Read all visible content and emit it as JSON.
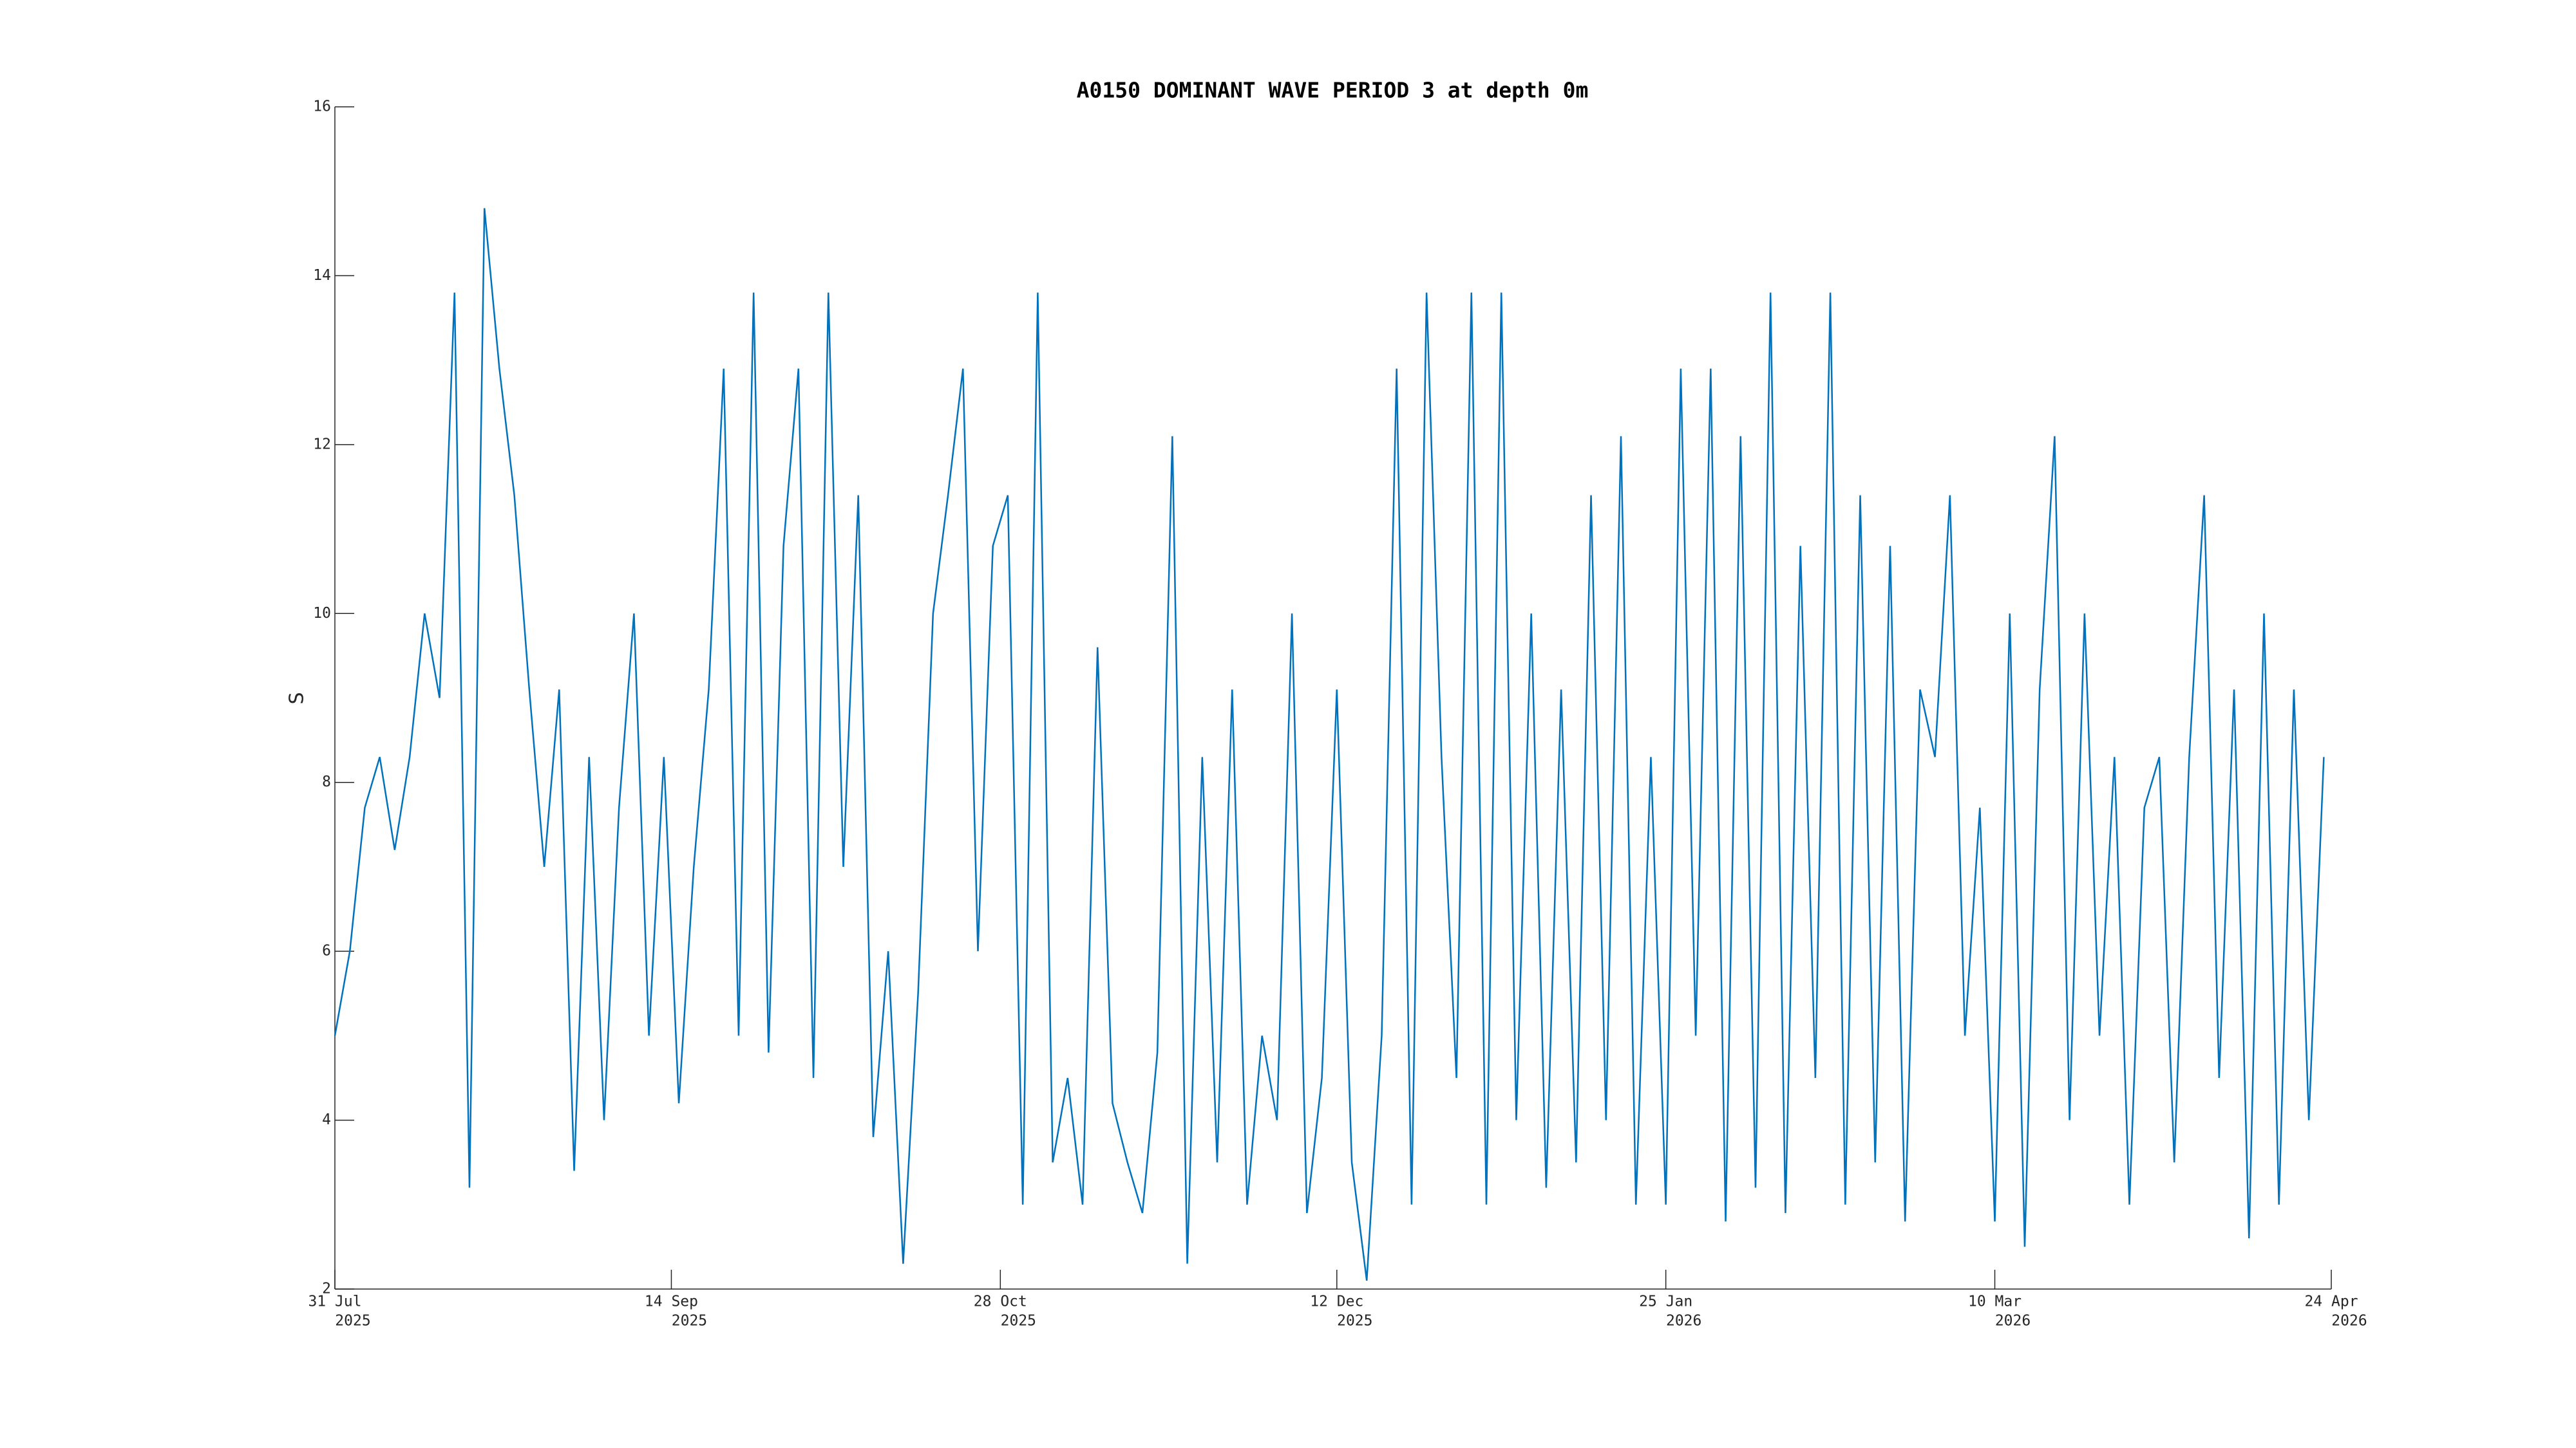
{
  "chart_data": {
    "type": "line",
    "title": "A0150 DOMINANT WAVE PERIOD 3 at depth 0m",
    "ylabel": "S",
    "color": "#0072bd",
    "xlim": [
      "2025-07-31",
      "2026-04-24"
    ],
    "xticks": [
      {
        "value": "2025-07-31",
        "label": [
          "31 Jul",
          "2025"
        ]
      },
      {
        "value": "2025-09-14",
        "label": [
          "14 Sep",
          "2025"
        ]
      },
      {
        "value": "2025-10-28",
        "label": [
          "28 Oct",
          "2025"
        ]
      },
      {
        "value": "2025-12-12",
        "label": [
          "12 Dec",
          "2025"
        ]
      },
      {
        "value": "2026-01-25",
        "label": [
          "25 Jan",
          "2026"
        ]
      },
      {
        "value": "2026-03-10",
        "label": [
          "10 Mar",
          "2026"
        ]
      },
      {
        "value": "2026-04-24",
        "label": [
          "24 Apr",
          "2026"
        ]
      }
    ],
    "ylim": [
      2,
      16
    ],
    "yticks": [
      2,
      4,
      6,
      8,
      10,
      12,
      14,
      16
    ],
    "x": [
      "2025-07-31",
      "2025-08-02",
      "2025-08-04",
      "2025-08-06",
      "2025-08-08",
      "2025-08-10",
      "2025-08-12",
      "2025-08-14",
      "2025-08-16",
      "2025-08-18",
      "2025-08-20",
      "2025-08-22",
      "2025-08-24",
      "2025-08-26",
      "2025-08-28",
      "2025-08-30",
      "2025-09-01",
      "2025-09-03",
      "2025-09-05",
      "2025-09-07",
      "2025-09-09",
      "2025-09-11",
      "2025-09-13",
      "2025-09-15",
      "2025-09-17",
      "2025-09-19",
      "2025-09-21",
      "2025-09-23",
      "2025-09-25",
      "2025-09-27",
      "2025-09-29",
      "2025-10-01",
      "2025-10-03",
      "2025-10-05",
      "2025-10-07",
      "2025-10-09",
      "2025-10-11",
      "2025-10-13",
      "2025-10-15",
      "2025-10-17",
      "2025-10-19",
      "2025-10-21",
      "2025-10-23",
      "2025-10-25",
      "2025-10-27",
      "2025-10-29",
      "2025-10-31",
      "2025-11-02",
      "2025-11-04",
      "2025-11-06",
      "2025-11-08",
      "2025-11-10",
      "2025-11-12",
      "2025-11-14",
      "2025-11-16",
      "2025-11-18",
      "2025-11-20",
      "2025-11-22",
      "2025-11-24",
      "2025-11-26",
      "2025-11-28",
      "2025-11-30",
      "2025-12-02",
      "2025-12-04",
      "2025-12-06",
      "2025-12-08",
      "2025-12-10",
      "2025-12-12",
      "2025-12-14",
      "2025-12-16",
      "2025-12-18",
      "2025-12-20",
      "2025-12-22",
      "2025-12-24",
      "2025-12-26",
      "2025-12-28",
      "2025-12-30",
      "2026-01-01",
      "2026-01-03",
      "2026-01-05",
      "2026-01-07",
      "2026-01-09",
      "2026-01-11",
      "2026-01-13",
      "2026-01-15",
      "2026-01-17",
      "2026-01-19",
      "2026-01-21",
      "2026-01-23",
      "2026-01-25",
      "2026-01-27",
      "2026-01-29",
      "2026-01-31",
      "2026-02-02",
      "2026-02-04",
      "2026-02-06",
      "2026-02-08",
      "2026-02-10",
      "2026-02-12",
      "2026-02-14",
      "2026-02-16",
      "2026-02-18",
      "2026-02-20",
      "2026-02-22",
      "2026-02-24",
      "2026-02-26",
      "2026-02-28",
      "2026-03-02",
      "2026-03-04",
      "2026-03-06",
      "2026-03-08",
      "2026-03-10",
      "2026-03-12",
      "2026-03-14",
      "2026-03-16",
      "2026-03-18",
      "2026-03-20",
      "2026-03-22",
      "2026-03-24",
      "2026-03-26",
      "2026-03-28",
      "2026-03-30",
      "2026-04-01",
      "2026-04-03",
      "2026-04-05",
      "2026-04-07",
      "2026-04-09",
      "2026-04-11",
      "2026-04-13",
      "2026-04-15",
      "2026-04-17",
      "2026-04-19",
      "2026-04-21",
      "2026-04-23"
    ],
    "values": [
      5,
      6,
      7.7,
      8.3,
      7.2,
      8.3,
      10,
      9,
      13.8,
      3.2,
      14.8,
      12.9,
      11.4,
      9.1,
      7,
      9.1,
      3.4,
      8.3,
      4.0,
      7.7,
      10,
      5,
      8.3,
      4.2,
      7.0,
      9.1,
      12.9,
      5.0,
      13.8,
      4.8,
      10.8,
      12.9,
      4.5,
      13.8,
      7.0,
      11.4,
      3.8,
      6.0,
      2.3,
      5.5,
      10.0,
      11.4,
      12.9,
      6.0,
      10.8,
      11.4,
      3.0,
      13.8,
      3.5,
      4.5,
      3.0,
      9.6,
      4.2,
      3.5,
      2.9,
      4.8,
      12.1,
      2.3,
      8.3,
      3.5,
      9.1,
      3.0,
      5.0,
      4.0,
      10.0,
      2.9,
      4.5,
      9.1,
      3.5,
      2.1,
      5.0,
      12.9,
      3.0,
      13.8,
      8.3,
      4.5,
      13.8,
      3.0,
      13.8,
      4.0,
      10.0,
      3.2,
      9.1,
      3.5,
      11.4,
      4.0,
      12.1,
      3.0,
      8.3,
      3.0,
      12.9,
      5.0,
      12.9,
      2.8,
      12.1,
      3.2,
      13.8,
      2.9,
      10.8,
      4.5,
      13.8,
      3.0,
      11.4,
      3.5,
      10.8,
      2.8,
      9.1,
      8.3,
      11.4,
      5.0,
      7.7,
      2.8,
      10.0,
      2.5,
      9.1,
      12.1,
      4.0,
      10.0,
      5.0,
      8.3,
      3.0,
      7.7,
      8.3,
      3.5,
      8.3,
      11.4,
      4.5,
      9.1,
      2.6,
      10.0,
      3.0,
      9.1,
      4.0,
      8.3
    ]
  }
}
